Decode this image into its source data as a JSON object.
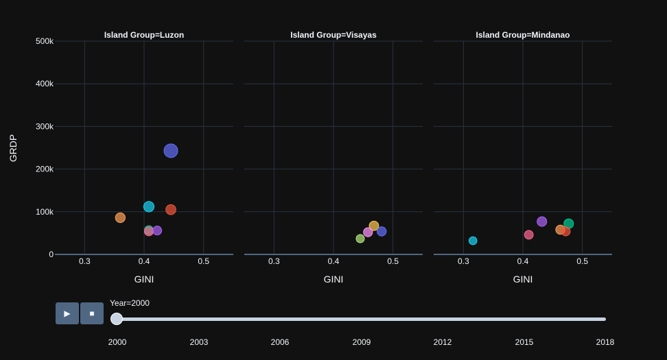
{
  "chart_data": {
    "type": "scatter",
    "ylabel": "GRDP",
    "ylim": [
      0,
      500000
    ],
    "xlim": [
      0.25,
      0.55
    ],
    "x_ticks": [
      "0.3",
      "0.4",
      "0.5"
    ],
    "x_tick_values": [
      0.3,
      0.4,
      0.5
    ],
    "y_ticks": [
      "0",
      "100k",
      "200k",
      "300k",
      "400k",
      "500k"
    ],
    "y_tick_values": [
      0,
      100000,
      200000,
      300000,
      400000,
      500000
    ],
    "grid": true,
    "panels": [
      {
        "title": "Island Group=Luzon",
        "xlabel": "GINI",
        "points": [
          {
            "x": 0.445,
            "y": 243000,
            "size": 1.0,
            "color": "#636efa"
          },
          {
            "x": 0.445,
            "y": 105000,
            "size": 0.55,
            "color": "#ef553b"
          },
          {
            "x": 0.408,
            "y": 112000,
            "size": 0.6,
            "color": "#19d3f3"
          },
          {
            "x": 0.36,
            "y": 86000,
            "size": 0.52,
            "color": "#ffa15a"
          },
          {
            "x": 0.408,
            "y": 57000,
            "size": 0.4,
            "color": "#00cc96"
          },
          {
            "x": 0.408,
            "y": 54000,
            "size": 0.42,
            "color": "#ff6692"
          },
          {
            "x": 0.422,
            "y": 56000,
            "size": 0.42,
            "color": "#ab63fa"
          }
        ]
      },
      {
        "title": "Island Group=Visayas",
        "xlabel": "GINI",
        "points": [
          {
            "x": 0.468,
            "y": 67000,
            "size": 0.48,
            "color": "#fecb52"
          },
          {
            "x": 0.481,
            "y": 54000,
            "size": 0.45,
            "color": "#636efa"
          },
          {
            "x": 0.458,
            "y": 52000,
            "size": 0.43,
            "color": "#ff97ff"
          },
          {
            "x": 0.445,
            "y": 37000,
            "size": 0.33,
            "color": "#b6e880"
          }
        ]
      },
      {
        "title": "Island Group=Mindanao",
        "xlabel": "GINI",
        "points": [
          {
            "x": 0.432,
            "y": 77000,
            "size": 0.5,
            "color": "#ab63fa"
          },
          {
            "x": 0.477,
            "y": 72000,
            "size": 0.5,
            "color": "#00cc96"
          },
          {
            "x": 0.463,
            "y": 58000,
            "size": 0.45,
            "color": "#ffa15a"
          },
          {
            "x": 0.472,
            "y": 54000,
            "size": 0.43,
            "color": "#ef553b"
          },
          {
            "x": 0.41,
            "y": 46000,
            "size": 0.4,
            "color": "#ff6692"
          },
          {
            "x": 0.316,
            "y": 32000,
            "size": 0.3,
            "color": "#19d3f3"
          }
        ]
      }
    ]
  },
  "animation": {
    "current_label": "Year=2000",
    "play_icon": "▶",
    "stop_icon": "■",
    "progress": 0,
    "slider_ticks": [
      "2000",
      "2003",
      "2006",
      "2009",
      "2012",
      "2015",
      "2018"
    ]
  }
}
